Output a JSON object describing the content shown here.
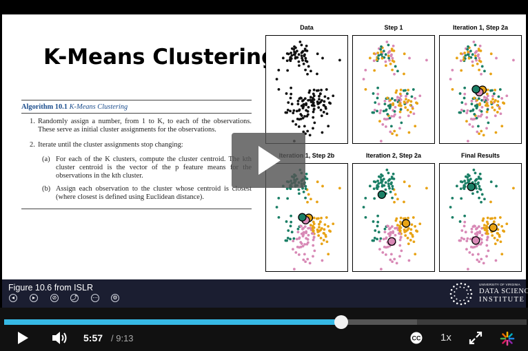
{
  "slide": {
    "title": "K-Means Clustering:",
    "algorithm": {
      "number": "Algorithm 10.1",
      "name": "K-Means Clustering",
      "step1_no": "1.",
      "step1": "Randomly assign a number, from 1 to K, to each of the observations. These serve as initial cluster assignments for the observations.",
      "step2_no": "2.",
      "step2": "Iterate until the cluster assignments stop changing:",
      "sub_a_no": "(a)",
      "sub_a": "For each of the K clusters, compute the cluster centroid. The kth cluster centroid is the vector of the p feature means for the observations in the kth cluster.",
      "sub_b_no": "(b)",
      "sub_b": "Assign each observation to the cluster whose centroid is closest (where closest is defined using Euclidean distance)."
    },
    "figure": {
      "panels": [
        "Data",
        "Step 1",
        "Iteration 1, Step 2a",
        "Iteration 1, Step 2b",
        "Iteration 2, Step 2a",
        "Final Results"
      ],
      "colors": {
        "data": "#111111",
        "cluster1": "#e8a316",
        "cluster2": "#d889b6",
        "cluster3": "#1b7f66"
      }
    }
  },
  "overlay": {
    "icon": "play-icon"
  },
  "info_bar": {
    "video_title": "Figure 10.6 from ISLR",
    "icons": [
      "rewind-icon",
      "forward-icon",
      "link-icon",
      "share-icon",
      "more-icon",
      "settings-icon"
    ],
    "logo": {
      "line1": "UNIVERSITY OF VIRGINIA",
      "line2": "DATA SCIENCE",
      "line3": "INSTITUTE"
    }
  },
  "controls": {
    "current_time": "5:57",
    "total_time": "/ 9:13",
    "progress": 0.645,
    "buffered": 0.79,
    "speed": "1x",
    "icons": [
      "play-icon",
      "volume-icon",
      "closed-captions-icon",
      "fullscreen-icon",
      "wistia-icon"
    ]
  }
}
